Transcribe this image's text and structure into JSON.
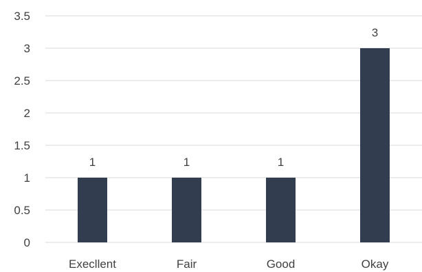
{
  "chart_data": {
    "type": "bar",
    "categories": [
      "Execllent",
      "Fair",
      "Good",
      "Okay"
    ],
    "values": [
      1,
      1,
      1,
      3
    ],
    "data_labels": [
      "1",
      "1",
      "1",
      "3"
    ],
    "ylim": [
      0,
      3.5
    ],
    "yticks": [
      "0",
      "0.5",
      "1",
      "1.5",
      "2",
      "2.5",
      "3",
      "3.5"
    ],
    "title": "",
    "xlabel": "",
    "ylabel": "",
    "grid": true,
    "legend": "none",
    "colors": {
      "bar": "#323d4f",
      "grid": "#d9d9d9",
      "text": "#404040"
    }
  }
}
